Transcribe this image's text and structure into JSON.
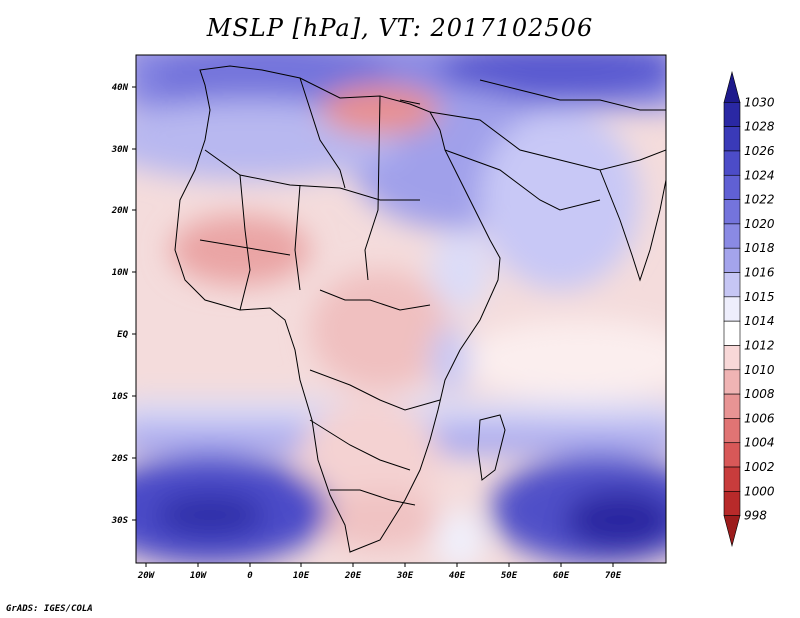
{
  "title": "MSLP [hPa], VT: 2017102506",
  "credit": "GrADS: IGES/COLA",
  "lat_labels": [
    "40N",
    "30N",
    "20N",
    "10N",
    "EQ",
    "10S",
    "20S",
    "30S"
  ],
  "lon_labels": [
    "20W",
    "10W",
    "0",
    "10E",
    "20E",
    "30E",
    "40E",
    "50E",
    "60E",
    "70E"
  ],
  "colorbar": {
    "levels": [
      "1030",
      "1028",
      "1026",
      "1024",
      "1022",
      "1020",
      "1018",
      "1016",
      "1015",
      "1014",
      "1012",
      "1010",
      "1008",
      "1006",
      "1004",
      "1002",
      "1000",
      "998"
    ],
    "colors": [
      "#1e1a8c",
      "#2a28a4",
      "#3a3ab8",
      "#4c4cc8",
      "#6060d4",
      "#7474dc",
      "#8a8ae4",
      "#a4a4ec",
      "#c6c6f4",
      "#eeeefc",
      "#ffffff",
      "#f8d8d8",
      "#f0b4b4",
      "#e89494",
      "#e07474",
      "#d85858",
      "#c83c3c",
      "#b82a2a",
      "#9c1c1c"
    ]
  },
  "regions": {
    "high_north": "1024",
    "high_south_atlantic": "1026",
    "high_south_indian": "1028",
    "low_libya": "1008",
    "low_sahel": "1010",
    "low_southern_africa": "1010"
  }
}
